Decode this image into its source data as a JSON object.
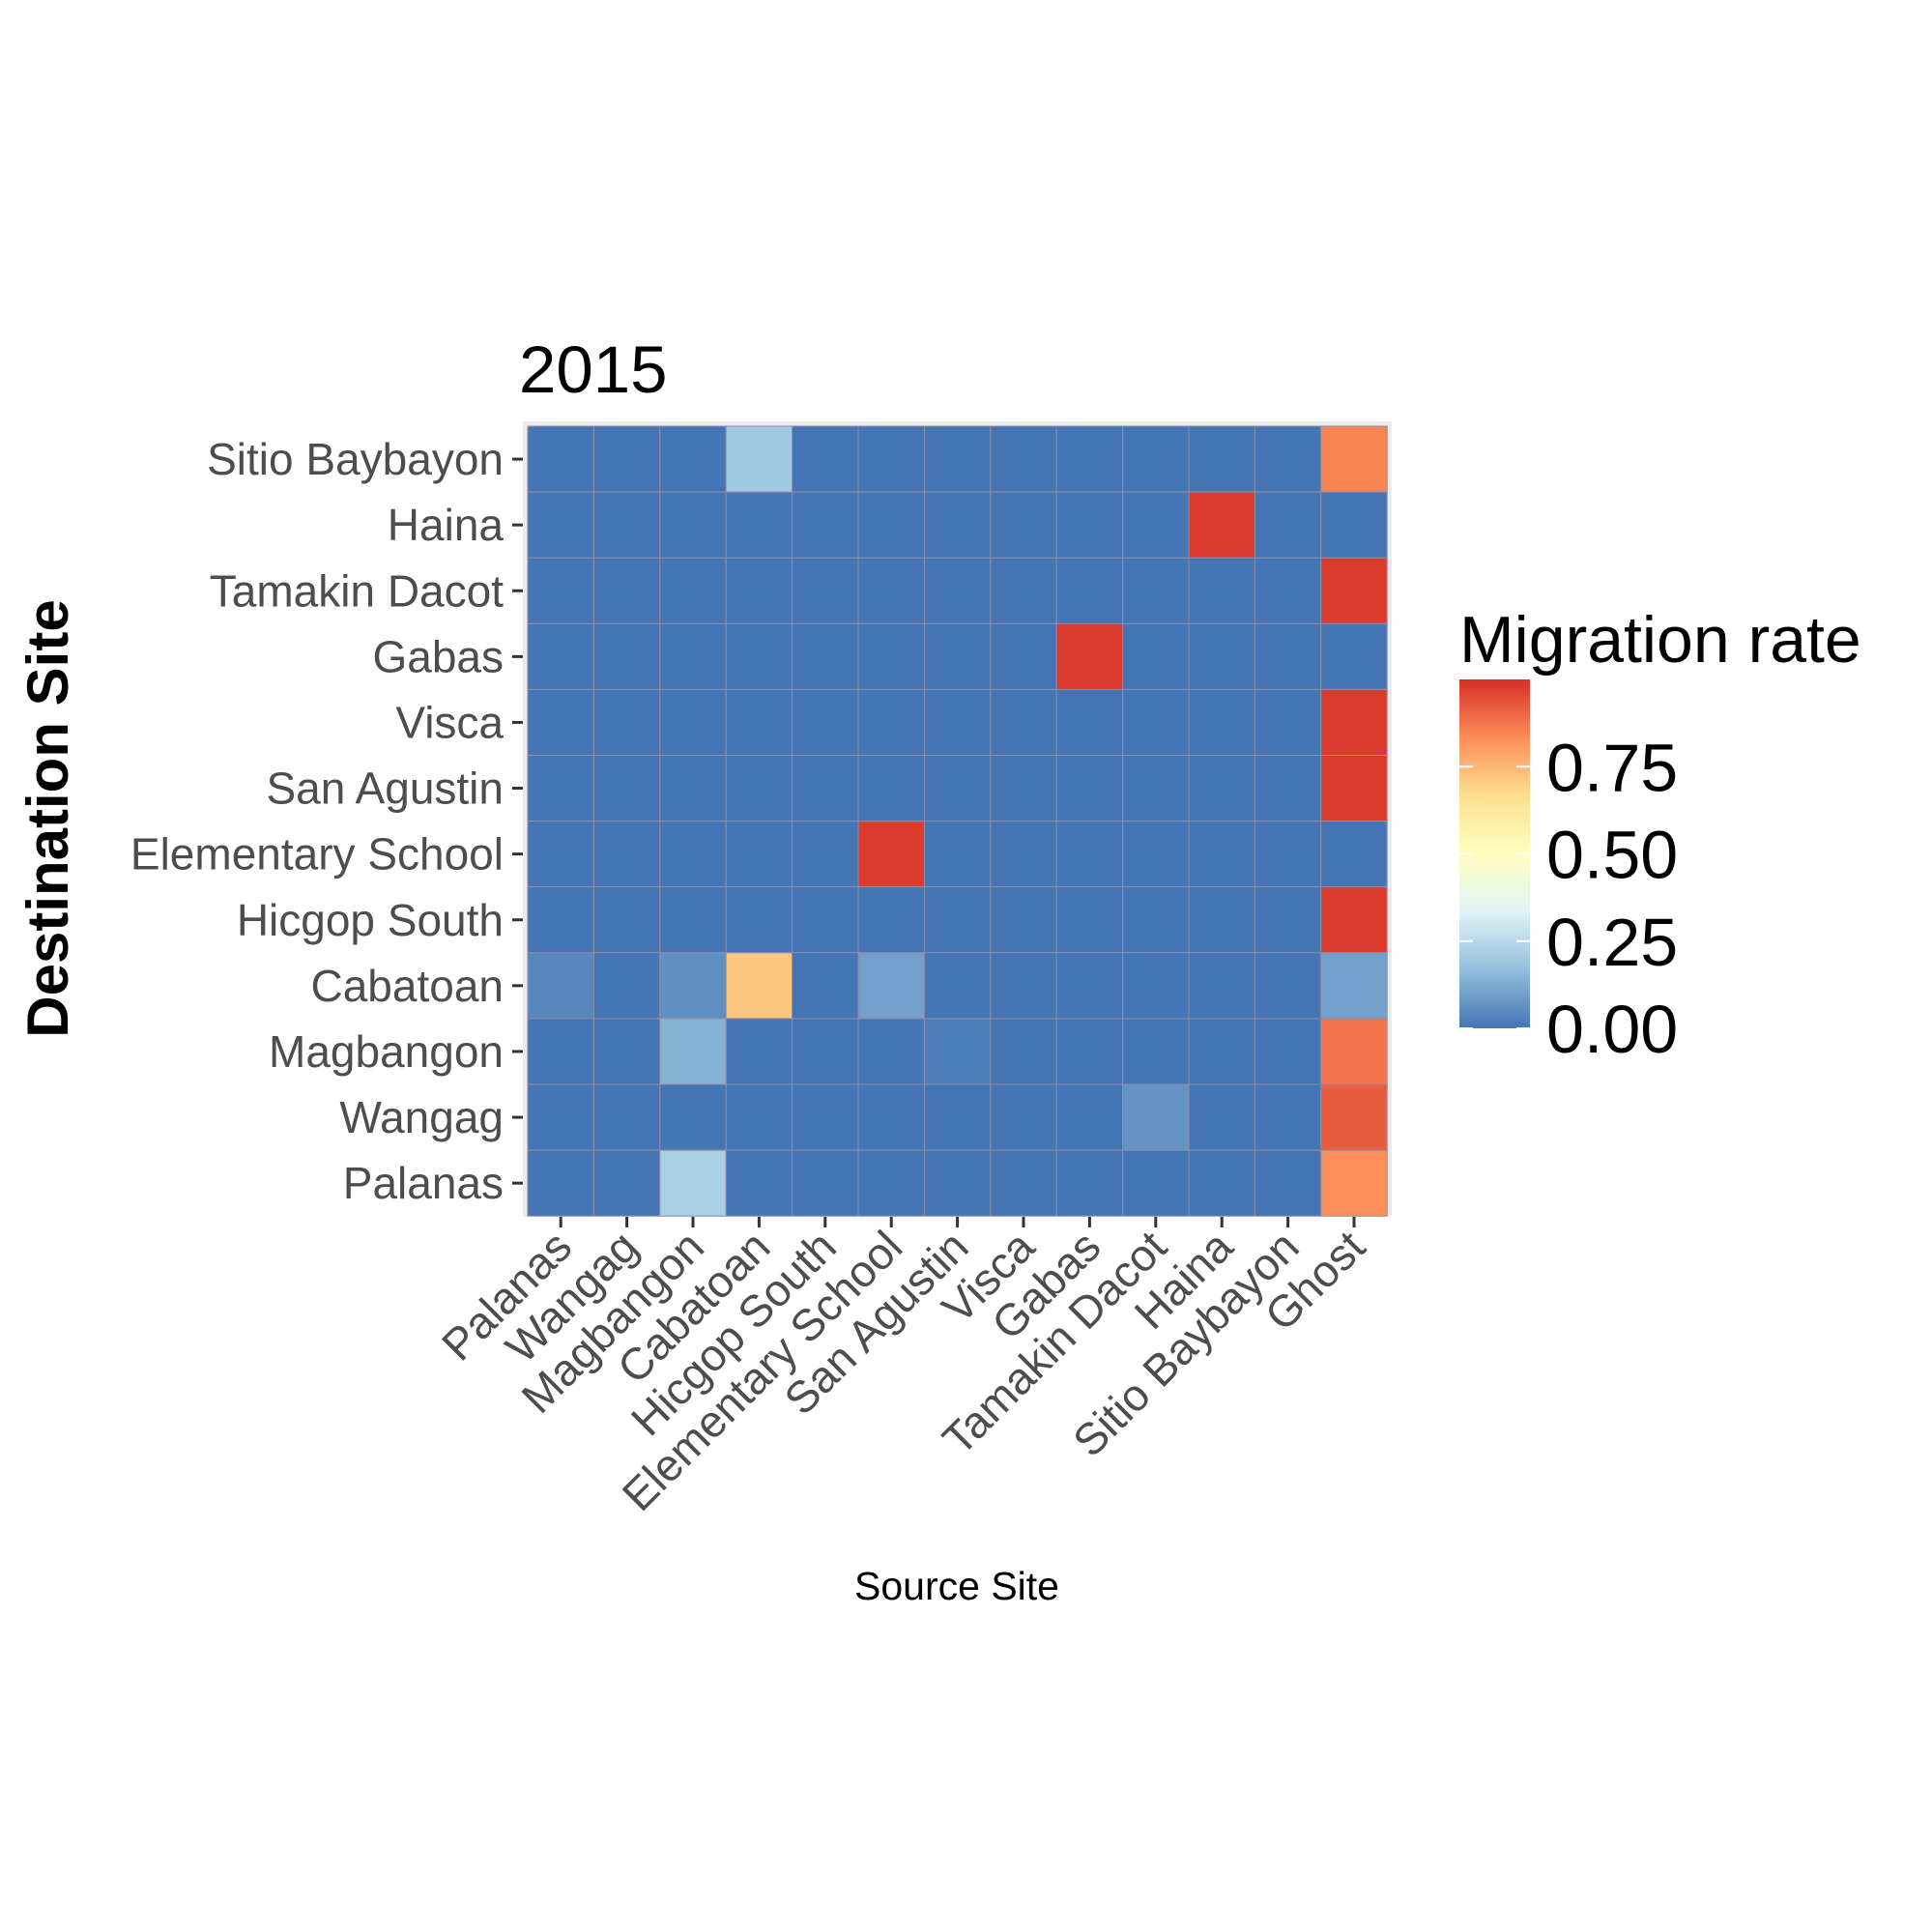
{
  "chart_data": {
    "type": "heatmap",
    "title": "2015",
    "xlabel": "Source Site",
    "ylabel": "Destination Site",
    "x_categories": [
      "Palanas",
      "Wangag",
      "Magbangon",
      "Cabatoan",
      "Hicgop South",
      "Elementary School",
      "San Agustin",
      "Visca",
      "Gabas",
      "Tamakin Dacot",
      "Haina",
      "Sitio Baybayon",
      "Ghost"
    ],
    "y_categories": [
      "Sitio Baybayon",
      "Haina",
      "Tamakin Dacot",
      "Gabas",
      "Visca",
      "San Agustin",
      "Elementary School",
      "Hicgop South",
      "Cabatoan",
      "Magbangon",
      "Wangag",
      "Palanas"
    ],
    "values": [
      [
        0.0,
        0.0,
        0.0,
        0.2,
        0.0,
        0.0,
        0.0,
        0.0,
        0.0,
        0.0,
        0.0,
        0.0,
        0.85
      ],
      [
        0.0,
        0.0,
        0.0,
        0.0,
        0.0,
        0.0,
        0.0,
        0.0,
        0.0,
        0.0,
        0.98,
        0.0,
        0.0
      ],
      [
        0.0,
        0.0,
        0.0,
        0.0,
        0.0,
        0.0,
        0.0,
        0.0,
        0.0,
        0.0,
        0.0,
        0.0,
        0.98
      ],
      [
        0.0,
        0.0,
        0.0,
        0.0,
        0.0,
        0.0,
        0.0,
        0.0,
        0.98,
        0.0,
        0.0,
        0.0,
        0.0
      ],
      [
        0.0,
        0.0,
        0.0,
        0.0,
        0.0,
        0.0,
        0.0,
        0.0,
        0.0,
        0.0,
        0.0,
        0.0,
        0.98
      ],
      [
        0.0,
        0.0,
        0.0,
        0.0,
        0.0,
        0.0,
        0.0,
        0.0,
        0.0,
        0.0,
        0.0,
        0.0,
        0.98
      ],
      [
        0.0,
        0.0,
        0.0,
        0.0,
        0.0,
        0.98,
        0.0,
        0.0,
        0.0,
        0.0,
        0.0,
        0.0,
        0.0
      ],
      [
        0.0,
        0.0,
        0.0,
        0.0,
        0.0,
        0.0,
        0.0,
        0.0,
        0.0,
        0.0,
        0.0,
        0.0,
        0.98
      ],
      [
        0.04,
        0.0,
        0.06,
        0.72,
        0.0,
        0.1,
        0.0,
        0.0,
        0.0,
        0.0,
        0.0,
        0.0,
        0.1
      ],
      [
        0.0,
        0.0,
        0.14,
        0.0,
        0.0,
        0.0,
        0.02,
        0.0,
        0.0,
        0.0,
        0.0,
        0.0,
        0.88
      ],
      [
        0.0,
        0.0,
        0.0,
        0.0,
        0.0,
        0.0,
        0.0,
        0.0,
        0.0,
        0.07,
        0.0,
        0.0,
        0.92
      ],
      [
        0.0,
        0.0,
        0.22,
        0.0,
        0.0,
        0.0,
        0.0,
        0.0,
        0.0,
        0.0,
        0.0,
        0.0,
        0.83
      ]
    ],
    "legend": {
      "title": "Migration rate",
      "ticks": [
        "0.75",
        "0.50",
        "0.25",
        "0.00"
      ],
      "tick_values": [
        0.75,
        0.5,
        0.25,
        0.0
      ],
      "range": [
        0.0,
        1.0
      ],
      "placement": "right"
    },
    "colorscale": [
      "#4575b4",
      "#91bfdb",
      "#e0f3f8",
      "#ffffbf",
      "#fee090",
      "#fc8d59",
      "#d73027"
    ],
    "grid": true
  }
}
